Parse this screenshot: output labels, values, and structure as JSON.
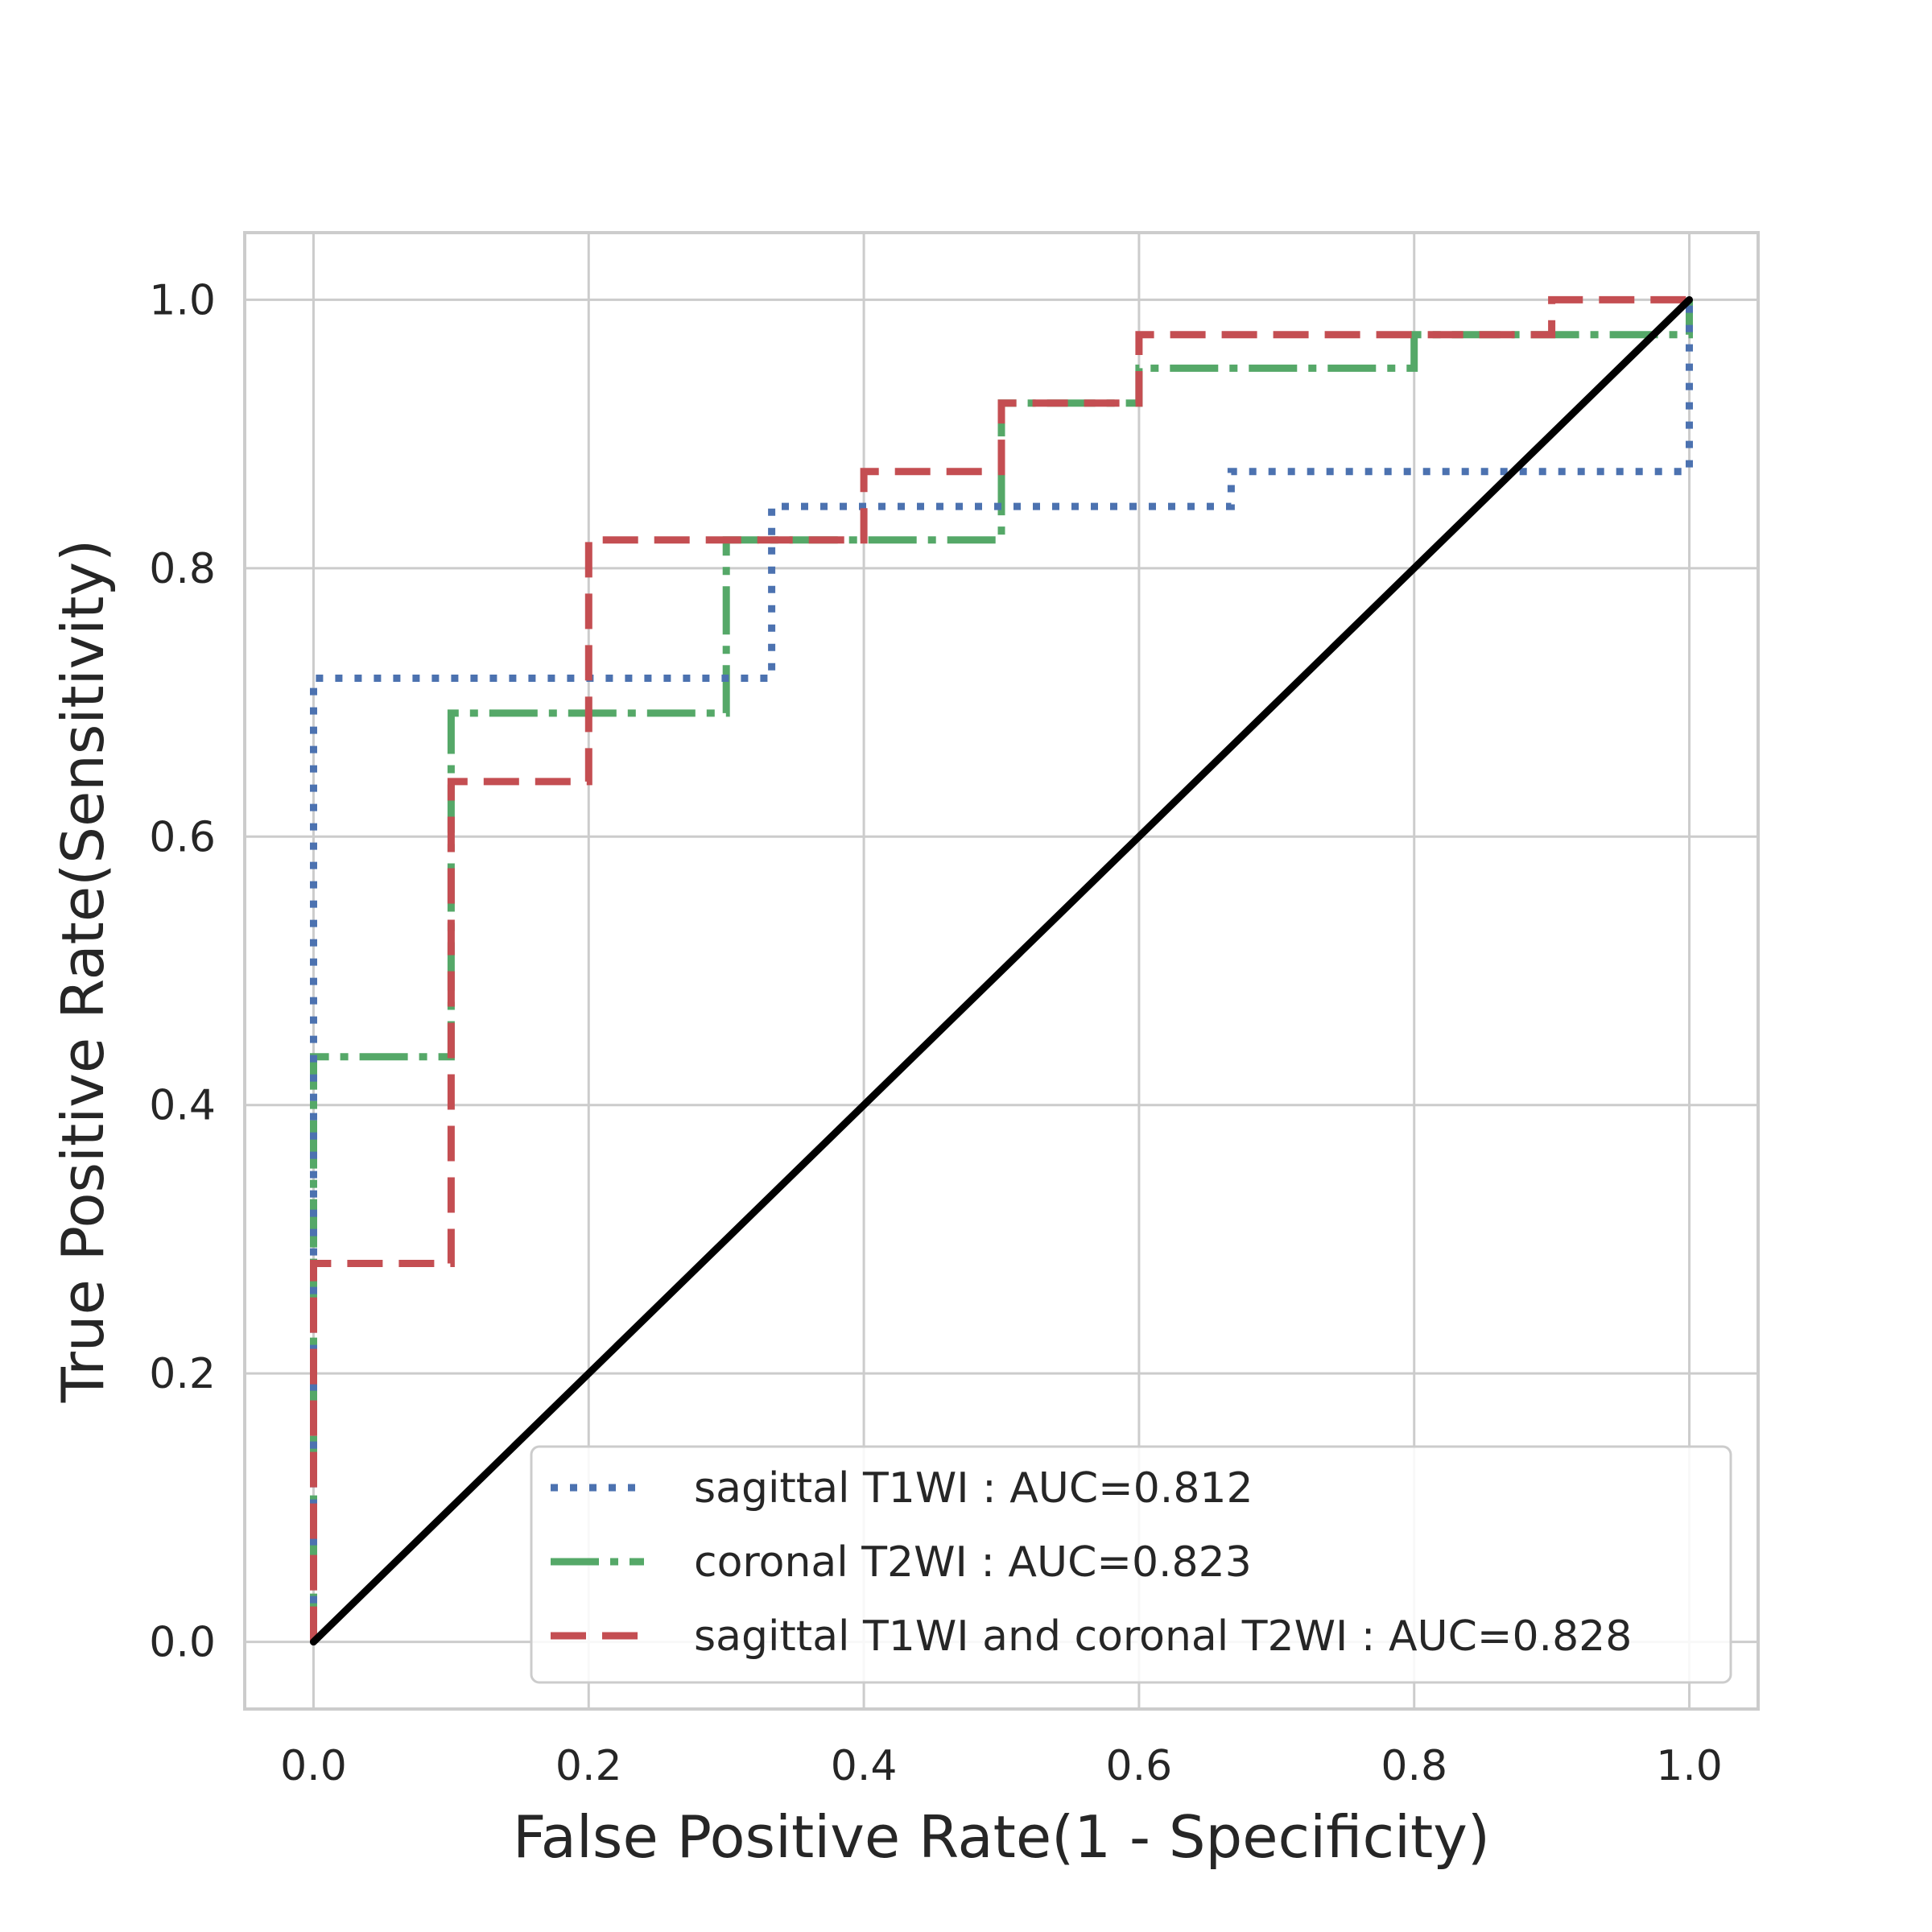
{
  "chart_data": {
    "type": "line",
    "title": "",
    "xlabel": "False Positive Rate(1 - Specificity)",
    "ylabel": "True Positive Rate(Sensitivity)",
    "xlim": [
      -0.05,
      1.05
    ],
    "ylim": [
      -0.05,
      1.05
    ],
    "xticks": [
      0.0,
      0.2,
      0.4,
      0.6,
      0.8,
      1.0
    ],
    "yticks": [
      0.0,
      0.2,
      0.4,
      0.6,
      0.8,
      1.0
    ],
    "xtick_labels": [
      "0.0",
      "0.2",
      "0.4",
      "0.6",
      "0.8",
      "1.0"
    ],
    "ytick_labels": [
      "0.0",
      "0.2",
      "0.4",
      "0.6",
      "0.8",
      "1.0"
    ],
    "grid": true,
    "legend_position": "lower-right",
    "series": [
      {
        "name": "sagittal T1WI : AUC=0.812",
        "color": "#4c72b0",
        "style": "dotted",
        "x": [
          0,
          0,
          0.333,
          0.333,
          0.667,
          0.667,
          1.0,
          1.0
        ],
        "y": [
          0,
          0.718,
          0.718,
          0.846,
          0.846,
          0.872,
          0.872,
          1.0
        ]
      },
      {
        "name": "coronal T2WI : AUC=0.823",
        "color": "#55a868",
        "style": "dashdot",
        "x": [
          0,
          0,
          0.1,
          0.1,
          0.3,
          0.3,
          0.5,
          0.5,
          0.6,
          0.6,
          0.8,
          0.8,
          1.0,
          1.0
        ],
        "y": [
          0,
          0.436,
          0.436,
          0.692,
          0.692,
          0.821,
          0.821,
          0.923,
          0.923,
          0.949,
          0.949,
          0.974,
          0.974,
          1.0
        ]
      },
      {
        "name": "sagittal T1WI and coronal T2WI : AUC=0.828",
        "color": "#c44e52",
        "style": "dashed",
        "x": [
          0,
          0,
          0.1,
          0.1,
          0.2,
          0.2,
          0.4,
          0.4,
          0.5,
          0.5,
          0.6,
          0.6,
          0.9,
          0.9,
          1.0
        ],
        "y": [
          0,
          0.282,
          0.282,
          0.641,
          0.641,
          0.821,
          0.821,
          0.872,
          0.872,
          0.923,
          0.923,
          0.974,
          0.974,
          1.0,
          1.0
        ]
      }
    ],
    "reference_line": {
      "name": "chance",
      "color": "#000000",
      "x": [
        0,
        1
      ],
      "y": [
        0,
        1
      ]
    }
  }
}
